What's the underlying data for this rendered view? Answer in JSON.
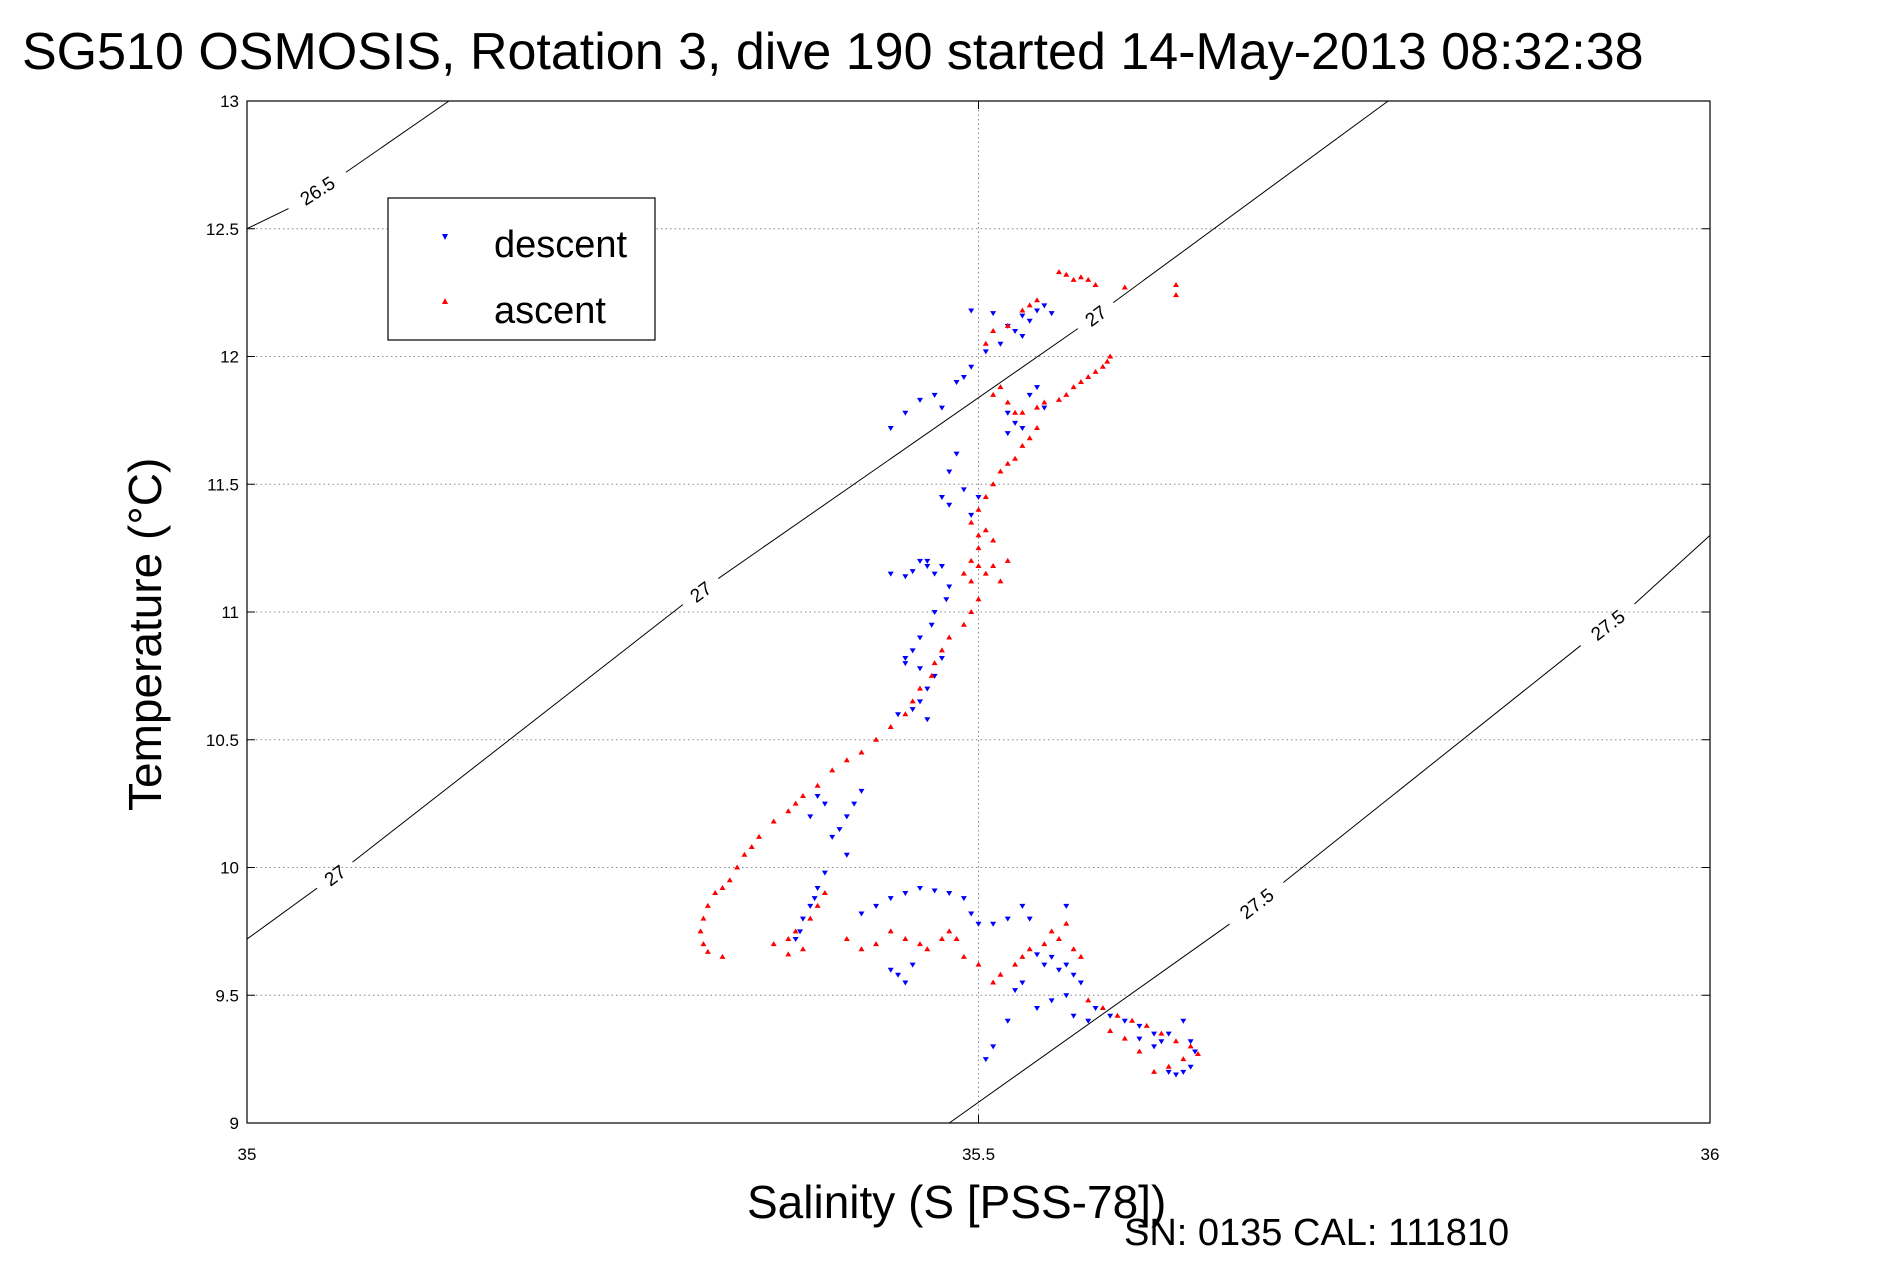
{
  "chart_data": {
    "type": "scatter",
    "title": "SG510 OSMOSIS, Rotation 3, dive 190 started 14-May-2013 08:32:38",
    "xlabel": "Salinity (S [PSS-78])",
    "ylabel": "Temperature (°C)",
    "footer": "SN: 0135  CAL: 111810",
    "xlim": [
      35,
      36
    ],
    "ylim": [
      9,
      13
    ],
    "x_ticks": [
      35,
      35.5,
      36
    ],
    "x_tick_labels": [
      "35",
      "35.5",
      "36"
    ],
    "y_ticks": [
      9,
      9.5,
      10,
      10.5,
      11,
      11.5,
      12,
      12.5,
      13
    ],
    "y_tick_labels": [
      "9",
      "9.5",
      "10",
      "10.5",
      "11",
      "11.5",
      "12",
      "12.5",
      "13"
    ],
    "grid": true,
    "legend_position": "top-left",
    "density_contours": [
      {
        "label": "26.5",
        "points": [
          [
            35,
            12.5
          ],
          [
            35.138,
            13
          ]
        ],
        "label_positions": [
          [
            35.048,
            12.65
          ]
        ]
      },
      {
        "label": "27",
        "points": [
          [
            35,
            9.72
          ],
          [
            35.78,
            13
          ]
        ],
        "label_positions": [
          [
            35.06,
            9.97
          ],
          [
            35.31,
            11.08
          ],
          [
            35.58,
            12.16
          ]
        ]
      },
      {
        "label": "27.5",
        "points": [
          [
            35.48,
            9
          ],
          [
            36,
            11.3
          ]
        ],
        "label_positions": [
          [
            35.69,
            9.86
          ],
          [
            35.93,
            10.95
          ]
        ]
      }
    ],
    "series": [
      {
        "name": "descent",
        "color": "#0000ff",
        "marker": "triangle-down",
        "points": [
          [
            35.495,
            12.18
          ],
          [
            35.51,
            12.17
          ],
          [
            35.53,
            12.16
          ],
          [
            35.535,
            12.14
          ],
          [
            35.54,
            12.18
          ],
          [
            35.545,
            12.2
          ],
          [
            35.55,
            12.17
          ],
          [
            35.52,
            12.12
          ],
          [
            35.525,
            12.1
          ],
          [
            35.53,
            12.08
          ],
          [
            35.515,
            12.05
          ],
          [
            35.47,
            11.85
          ],
          [
            35.46,
            11.83
          ],
          [
            35.475,
            11.8
          ],
          [
            35.485,
            11.9
          ],
          [
            35.45,
            11.78
          ],
          [
            35.44,
            11.72
          ],
          [
            35.495,
            11.96
          ],
          [
            35.505,
            12.02
          ],
          [
            35.49,
            11.92
          ],
          [
            35.52,
            11.78
          ],
          [
            35.525,
            11.74
          ],
          [
            35.53,
            11.72
          ],
          [
            35.52,
            11.7
          ],
          [
            35.535,
            11.85
          ],
          [
            35.545,
            11.8
          ],
          [
            35.54,
            11.88
          ],
          [
            35.485,
            11.62
          ],
          [
            35.48,
            11.55
          ],
          [
            35.475,
            11.45
          ],
          [
            35.48,
            11.42
          ],
          [
            35.49,
            11.48
          ],
          [
            35.5,
            11.45
          ],
          [
            35.495,
            11.38
          ],
          [
            35.46,
            11.2
          ],
          [
            35.465,
            11.18
          ],
          [
            35.47,
            11.15
          ],
          [
            35.455,
            11.16
          ],
          [
            35.45,
            11.14
          ],
          [
            35.44,
            11.15
          ],
          [
            35.465,
            11.2
          ],
          [
            35.475,
            11.18
          ],
          [
            35.48,
            11.1
          ],
          [
            35.478,
            11.05
          ],
          [
            35.47,
            11.0
          ],
          [
            35.468,
            10.95
          ],
          [
            35.46,
            10.9
          ],
          [
            35.455,
            10.85
          ],
          [
            35.45,
            10.82
          ],
          [
            35.45,
            10.8
          ],
          [
            35.46,
            10.78
          ],
          [
            35.47,
            10.75
          ],
          [
            35.475,
            10.82
          ],
          [
            35.465,
            10.7
          ],
          [
            35.46,
            10.65
          ],
          [
            35.455,
            10.62
          ],
          [
            35.445,
            10.6
          ],
          [
            35.465,
            10.58
          ],
          [
            35.42,
            10.3
          ],
          [
            35.415,
            10.25
          ],
          [
            35.41,
            10.2
          ],
          [
            35.405,
            10.15
          ],
          [
            35.4,
            10.12
          ],
          [
            35.41,
            10.05
          ],
          [
            35.395,
            10.25
          ],
          [
            35.39,
            10.28
          ],
          [
            35.385,
            10.2
          ],
          [
            35.395,
            9.98
          ],
          [
            35.39,
            9.92
          ],
          [
            35.388,
            9.88
          ],
          [
            35.385,
            9.85
          ],
          [
            35.38,
            9.8
          ],
          [
            35.378,
            9.75
          ],
          [
            35.375,
            9.72
          ],
          [
            35.42,
            9.82
          ],
          [
            35.43,
            9.85
          ],
          [
            35.44,
            9.88
          ],
          [
            35.45,
            9.9
          ],
          [
            35.46,
            9.92
          ],
          [
            35.47,
            9.91
          ],
          [
            35.48,
            9.9
          ],
          [
            35.49,
            9.88
          ],
          [
            35.495,
            9.82
          ],
          [
            35.5,
            9.78
          ],
          [
            35.44,
            9.6
          ],
          [
            35.445,
            9.58
          ],
          [
            35.45,
            9.55
          ],
          [
            35.455,
            9.62
          ],
          [
            35.51,
            9.78
          ],
          [
            35.52,
            9.8
          ],
          [
            35.53,
            9.85
          ],
          [
            35.535,
            9.8
          ],
          [
            35.56,
            9.85
          ],
          [
            35.54,
            9.66
          ],
          [
            35.545,
            9.62
          ],
          [
            35.55,
            9.65
          ],
          [
            35.555,
            9.6
          ],
          [
            35.56,
            9.62
          ],
          [
            35.565,
            9.58
          ],
          [
            35.57,
            9.55
          ],
          [
            35.53,
            9.55
          ],
          [
            35.525,
            9.52
          ],
          [
            35.54,
            9.45
          ],
          [
            35.55,
            9.48
          ],
          [
            35.56,
            9.5
          ],
          [
            35.565,
            9.42
          ],
          [
            35.575,
            9.4
          ],
          [
            35.58,
            9.45
          ],
          [
            35.59,
            9.42
          ],
          [
            35.52,
            9.4
          ],
          [
            35.505,
            9.25
          ],
          [
            35.51,
            9.3
          ],
          [
            35.6,
            9.4
          ],
          [
            35.61,
            9.38
          ],
          [
            35.62,
            9.35
          ],
          [
            35.625,
            9.32
          ],
          [
            35.63,
            9.35
          ],
          [
            35.64,
            9.4
          ],
          [
            35.645,
            9.32
          ],
          [
            35.648,
            9.28
          ],
          [
            35.63,
            9.2
          ],
          [
            35.635,
            9.19
          ],
          [
            35.64,
            9.2
          ],
          [
            35.645,
            9.22
          ],
          [
            35.62,
            9.3
          ],
          [
            35.61,
            9.33
          ]
        ]
      },
      {
        "name": "ascent",
        "color": "#ff0000",
        "marker": "triangle-up",
        "points": [
          [
            35.555,
            12.33
          ],
          [
            35.56,
            12.32
          ],
          [
            35.565,
            12.3
          ],
          [
            35.57,
            12.31
          ],
          [
            35.575,
            12.3
          ],
          [
            35.58,
            12.28
          ],
          [
            35.6,
            12.27
          ],
          [
            35.635,
            12.28
          ],
          [
            35.635,
            12.24
          ],
          [
            35.54,
            12.22
          ],
          [
            35.535,
            12.2
          ],
          [
            35.53,
            12.18
          ],
          [
            35.52,
            12.12
          ],
          [
            35.51,
            12.1
          ],
          [
            35.505,
            12.05
          ],
          [
            35.59,
            12.0
          ],
          [
            35.588,
            11.98
          ],
          [
            35.585,
            11.96
          ],
          [
            35.58,
            11.94
          ],
          [
            35.575,
            11.92
          ],
          [
            35.57,
            11.9
          ],
          [
            35.565,
            11.88
          ],
          [
            35.56,
            11.85
          ],
          [
            35.555,
            11.83
          ],
          [
            35.545,
            11.82
          ],
          [
            35.54,
            11.8
          ],
          [
            35.53,
            11.78
          ],
          [
            35.515,
            11.88
          ],
          [
            35.51,
            11.85
          ],
          [
            35.52,
            11.82
          ],
          [
            35.525,
            11.78
          ],
          [
            35.54,
            11.72
          ],
          [
            35.535,
            11.68
          ],
          [
            35.53,
            11.65
          ],
          [
            35.525,
            11.6
          ],
          [
            35.52,
            11.58
          ],
          [
            35.515,
            11.55
          ],
          [
            35.51,
            11.5
          ],
          [
            35.505,
            11.45
          ],
          [
            35.5,
            11.4
          ],
          [
            35.495,
            11.35
          ],
          [
            35.5,
            11.3
          ],
          [
            35.505,
            11.32
          ],
          [
            35.51,
            11.28
          ],
          [
            35.5,
            11.25
          ],
          [
            35.495,
            11.2
          ],
          [
            35.5,
            11.18
          ],
          [
            35.505,
            11.15
          ],
          [
            35.51,
            11.18
          ],
          [
            35.515,
            11.12
          ],
          [
            35.52,
            11.2
          ],
          [
            35.49,
            11.15
          ],
          [
            35.495,
            11.12
          ],
          [
            35.5,
            11.05
          ],
          [
            35.495,
            11.0
          ],
          [
            35.49,
            10.95
          ],
          [
            35.48,
            10.9
          ],
          [
            35.475,
            10.85
          ],
          [
            35.47,
            10.8
          ],
          [
            35.468,
            10.75
          ],
          [
            35.46,
            10.7
          ],
          [
            35.455,
            10.65
          ],
          [
            35.45,
            10.6
          ],
          [
            35.44,
            10.55
          ],
          [
            35.43,
            10.5
          ],
          [
            35.42,
            10.45
          ],
          [
            35.41,
            10.42
          ],
          [
            35.4,
            10.38
          ],
          [
            35.39,
            10.32
          ],
          [
            35.38,
            10.28
          ],
          [
            35.375,
            10.25
          ],
          [
            35.37,
            10.22
          ],
          [
            35.36,
            10.18
          ],
          [
            35.35,
            10.12
          ],
          [
            35.345,
            10.08
          ],
          [
            35.34,
            10.05
          ],
          [
            35.335,
            10.0
          ],
          [
            35.33,
            9.95
          ],
          [
            35.325,
            9.92
          ],
          [
            35.32,
            9.9
          ],
          [
            35.315,
            9.85
          ],
          [
            35.312,
            9.8
          ],
          [
            35.31,
            9.75
          ],
          [
            35.312,
            9.7
          ],
          [
            35.315,
            9.67
          ],
          [
            35.325,
            9.65
          ],
          [
            35.36,
            9.7
          ],
          [
            35.37,
            9.72
          ],
          [
            35.375,
            9.75
          ],
          [
            35.385,
            9.8
          ],
          [
            35.39,
            9.85
          ],
          [
            35.395,
            9.9
          ],
          [
            35.38,
            9.68
          ],
          [
            35.37,
            9.66
          ],
          [
            35.41,
            9.72
          ],
          [
            35.42,
            9.68
          ],
          [
            35.43,
            9.7
          ],
          [
            35.44,
            9.75
          ],
          [
            35.45,
            9.72
          ],
          [
            35.46,
            9.7
          ],
          [
            35.465,
            9.68
          ],
          [
            35.475,
            9.72
          ],
          [
            35.48,
            9.75
          ],
          [
            35.485,
            9.72
          ],
          [
            35.49,
            9.65
          ],
          [
            35.5,
            9.62
          ],
          [
            35.51,
            9.55
          ],
          [
            35.515,
            9.58
          ],
          [
            35.525,
            9.62
          ],
          [
            35.53,
            9.65
          ],
          [
            35.535,
            9.68
          ],
          [
            35.545,
            9.7
          ],
          [
            35.55,
            9.75
          ],
          [
            35.555,
            9.72
          ],
          [
            35.56,
            9.78
          ],
          [
            35.565,
            9.68
          ],
          [
            35.57,
            9.65
          ],
          [
            35.575,
            9.48
          ],
          [
            35.585,
            9.45
          ],
          [
            35.595,
            9.42
          ],
          [
            35.605,
            9.4
          ],
          [
            35.615,
            9.38
          ],
          [
            35.625,
            9.35
          ],
          [
            35.635,
            9.32
          ],
          [
            35.645,
            9.3
          ],
          [
            35.65,
            9.27
          ],
          [
            35.64,
            9.25
          ],
          [
            35.63,
            9.22
          ],
          [
            35.62,
            9.2
          ],
          [
            35.61,
            9.28
          ],
          [
            35.6,
            9.33
          ],
          [
            35.59,
            9.36
          ]
        ]
      }
    ]
  }
}
